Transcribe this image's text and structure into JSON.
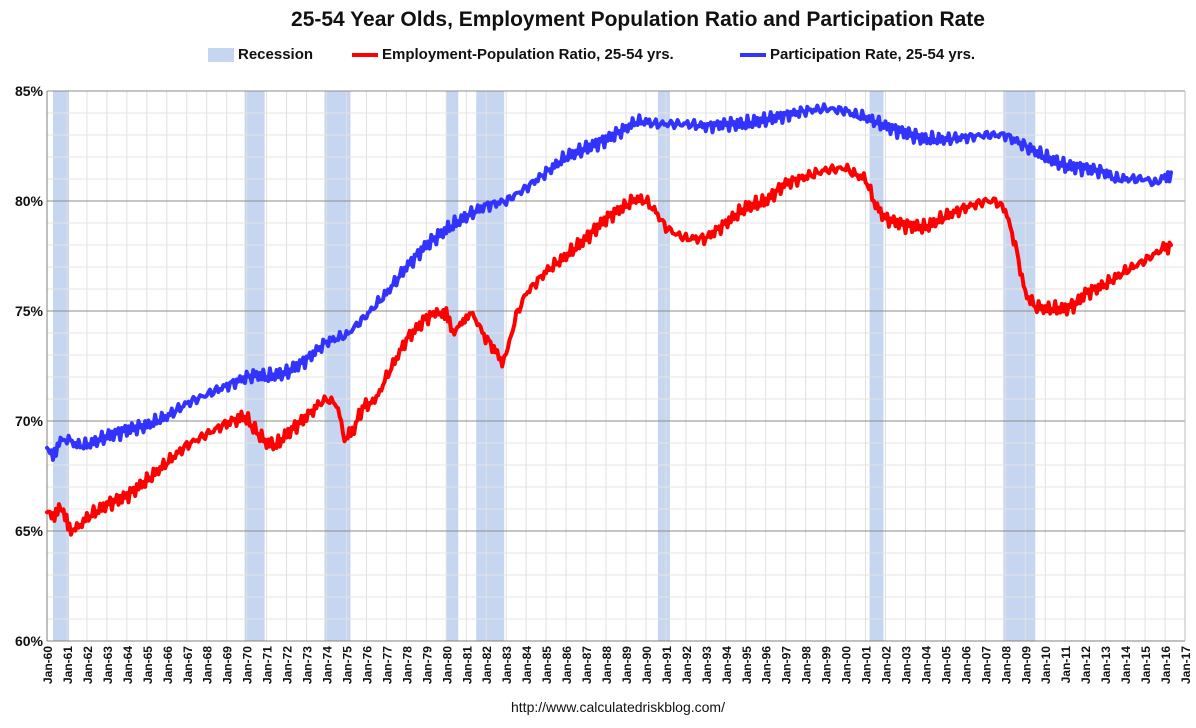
{
  "chart_data": {
    "type": "line",
    "title": "25-54 Year Olds, Employment Population Ratio and Participation Rate",
    "xlabel": "",
    "ylabel": "",
    "ylim": [
      60,
      85
    ],
    "yticks": [
      "60%",
      "65%",
      "70%",
      "75%",
      "80%",
      "85%"
    ],
    "ytick_values": [
      60,
      65,
      70,
      75,
      80,
      85
    ],
    "xlim": [
      1960.0,
      2017.0
    ],
    "xticks": [
      "Jan-60",
      "Jan-61",
      "Jan-62",
      "Jan-63",
      "Jan-64",
      "Jan-65",
      "Jan-66",
      "Jan-67",
      "Jan-68",
      "Jan-69",
      "Jan-70",
      "Jan-71",
      "Jan-72",
      "Jan-73",
      "Jan-74",
      "Jan-75",
      "Jan-76",
      "Jan-77",
      "Jan-78",
      "Jan-79",
      "Jan-80",
      "Jan-81",
      "Jan-82",
      "Jan-83",
      "Jan-84",
      "Jan-85",
      "Jan-86",
      "Jan-87",
      "Jan-88",
      "Jan-89",
      "Jan-90",
      "Jan-91",
      "Jan-92",
      "Jan-93",
      "Jan-94",
      "Jan-95",
      "Jan-96",
      "Jan-97",
      "Jan-98",
      "Jan-99",
      "Jan-00",
      "Jan-01",
      "Jan-02",
      "Jan-03",
      "Jan-04",
      "Jan-05",
      "Jan-06",
      "Jan-07",
      "Jan-08",
      "Jan-09",
      "Jan-10",
      "Jan-11",
      "Jan-12",
      "Jan-13",
      "Jan-14",
      "Jan-15",
      "Jan-16",
      "Jan-17"
    ],
    "grid": true,
    "legend": [
      {
        "name": "Recession",
        "kind": "box",
        "color": "#c6d6f0"
      },
      {
        "name": "Employment-Population Ratio, 25-54 yrs.",
        "kind": "line",
        "color": "#ff0000"
      },
      {
        "name": "Participation Rate, 25-54 yrs.",
        "kind": "line",
        "color": "#3333ff"
      }
    ],
    "legend_position": "top-center",
    "recessions": [
      [
        1960.3,
        1961.1
      ],
      [
        1969.9,
        1970.9
      ],
      [
        1973.9,
        1975.2
      ],
      [
        1980.0,
        1980.6
      ],
      [
        1981.5,
        1982.9
      ],
      [
        1990.6,
        1991.2
      ],
      [
        2001.2,
        2001.9
      ],
      [
        2007.9,
        2009.5
      ]
    ],
    "series": [
      {
        "name": "Employment-Population Ratio, 25-54 yrs.",
        "color": "#ff0000",
        "x": [
          1960.0,
          1960.3,
          1960.6,
          1960.9,
          1961.2,
          1961.5,
          1962.0,
          1963.0,
          1964.0,
          1965.0,
          1966.0,
          1967.0,
          1968.0,
          1969.0,
          1969.9,
          1970.5,
          1971.0,
          1971.5,
          1972.0,
          1973.0,
          1973.9,
          1974.5,
          1974.9,
          1975.3,
          1975.8,
          1976.5,
          1977.0,
          1978.0,
          1979.0,
          1979.7,
          1980.0,
          1980.4,
          1980.7,
          1981.0,
          1981.4,
          1981.8,
          1982.3,
          1982.8,
          1983.0,
          1983.5,
          1984.0,
          1985.0,
          1986.0,
          1987.0,
          1988.0,
          1989.0,
          1989.5,
          1990.0,
          1990.5,
          1991.0,
          1991.5,
          1992.0,
          1993.0,
          1994.0,
          1995.0,
          1996.0,
          1997.0,
          1998.0,
          1999.0,
          2000.0,
          2000.5,
          2001.0,
          2001.5,
          2002.0,
          2003.0,
          2004.0,
          2005.0,
          2006.0,
          2007.0,
          2007.5,
          2008.0,
          2008.5,
          2009.0,
          2009.5,
          2010.0,
          2011.0,
          2011.5,
          2012.0,
          2013.0,
          2014.0,
          2015.0,
          2015.5,
          2016.0,
          2016.3
        ],
        "values": [
          65.8,
          65.7,
          66.1,
          65.6,
          65.1,
          65.1,
          65.6,
          66.2,
          66.6,
          67.3,
          68.1,
          68.9,
          69.4,
          69.9,
          70.2,
          69.5,
          69.0,
          68.9,
          69.4,
          70.2,
          71.0,
          70.8,
          69.2,
          69.5,
          70.6,
          71.0,
          72.0,
          73.7,
          74.7,
          75.0,
          74.8,
          74.0,
          74.3,
          74.8,
          74.8,
          74.0,
          73.4,
          72.7,
          73.0,
          74.8,
          75.8,
          76.8,
          77.5,
          78.3,
          79.2,
          79.8,
          80.1,
          80.0,
          79.5,
          78.8,
          78.5,
          78.3,
          78.3,
          79.0,
          79.7,
          80.0,
          80.8,
          81.1,
          81.4,
          81.5,
          81.2,
          81.0,
          79.8,
          79.2,
          78.9,
          78.8,
          79.3,
          79.7,
          80.0,
          80.0,
          79.6,
          78.0,
          75.8,
          75.2,
          75.1,
          75.1,
          75.3,
          75.8,
          76.2,
          76.8,
          77.3,
          77.6,
          77.9,
          78.0
        ]
      },
      {
        "name": "Participation Rate, 25-54 yrs.",
        "color": "#3333ff",
        "x": [
          1960.0,
          1960.3,
          1960.6,
          1961.0,
          1961.5,
          1962.0,
          1963.0,
          1964.0,
          1965.0,
          1966.0,
          1967.0,
          1968.0,
          1969.0,
          1970.0,
          1970.5,
          1971.0,
          1972.0,
          1973.0,
          1974.0,
          1975.0,
          1976.0,
          1977.0,
          1978.0,
          1979.0,
          1980.0,
          1981.0,
          1982.0,
          1983.0,
          1984.0,
          1985.0,
          1986.0,
          1987.0,
          1988.0,
          1989.0,
          1989.5,
          1990.0,
          1990.5,
          1991.0,
          1992.0,
          1993.0,
          1994.0,
          1995.0,
          1996.0,
          1997.0,
          1998.0,
          1999.0,
          2000.0,
          2000.5,
          2001.0,
          2002.0,
          2003.0,
          2004.0,
          2005.0,
          2006.0,
          2007.0,
          2008.0,
          2009.0,
          2010.0,
          2011.0,
          2012.0,
          2013.0,
          2013.5,
          2014.0,
          2015.0,
          2015.5,
          2016.0,
          2016.3
        ],
        "values": [
          68.6,
          68.5,
          69.0,
          69.2,
          68.9,
          68.9,
          69.3,
          69.6,
          69.8,
          70.2,
          70.8,
          71.2,
          71.6,
          72.0,
          72.1,
          72.0,
          72.2,
          72.8,
          73.6,
          73.9,
          74.8,
          75.8,
          77.0,
          78.0,
          78.7,
          79.3,
          79.8,
          80.0,
          80.6,
          81.3,
          82.0,
          82.4,
          82.8,
          83.3,
          83.6,
          83.6,
          83.5,
          83.5,
          83.5,
          83.4,
          83.5,
          83.5,
          83.7,
          83.9,
          84.1,
          84.2,
          84.1,
          83.9,
          83.8,
          83.4,
          83.1,
          82.8,
          82.8,
          82.9,
          83.0,
          83.0,
          82.5,
          82.0,
          81.6,
          81.5,
          81.3,
          81.0,
          81.0,
          81.0,
          80.8,
          81.1,
          81.3
        ]
      }
    ],
    "source": "http://www.calculatedriskblog.com/"
  }
}
